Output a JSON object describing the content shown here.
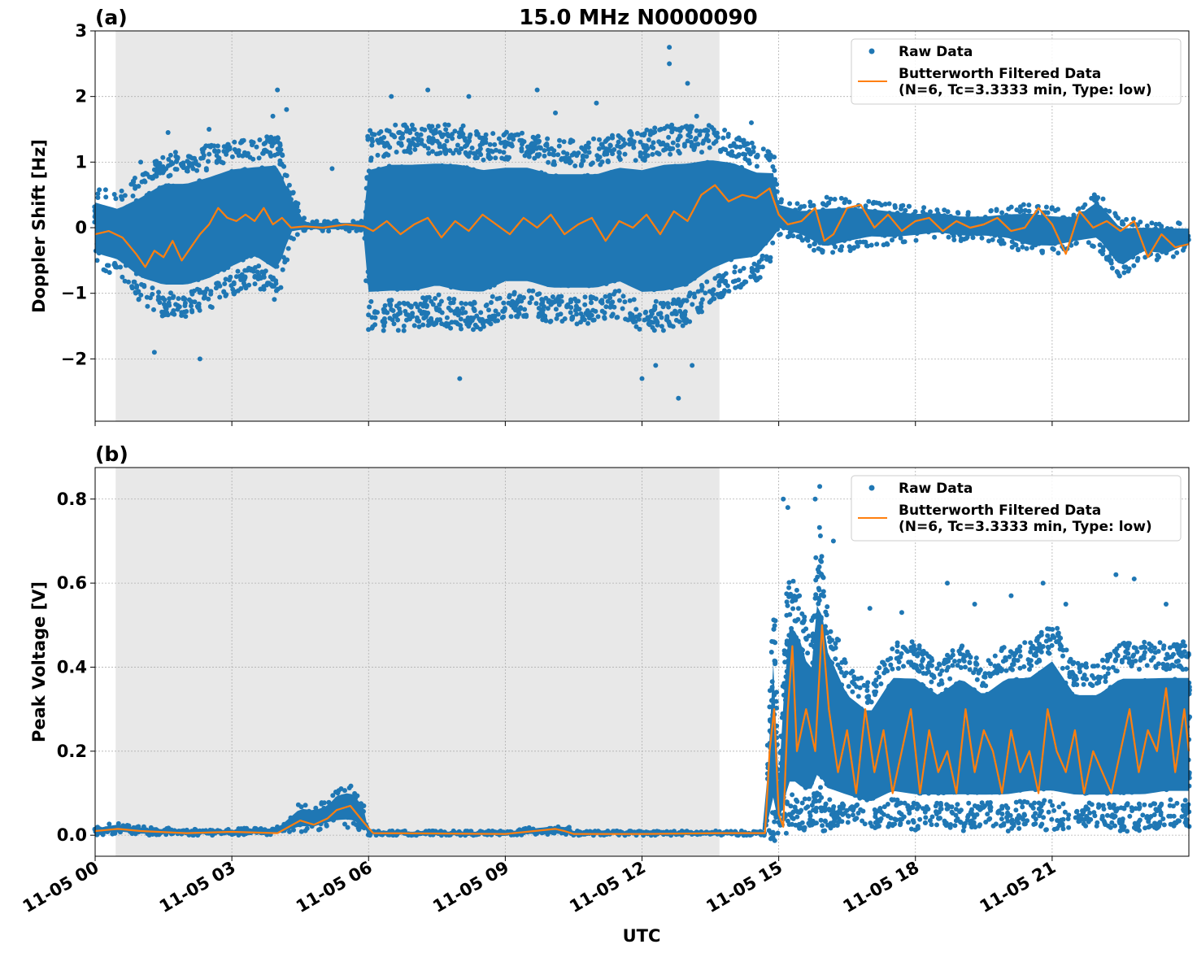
{
  "figure_title": "15.0 MHz N0000090",
  "xlabel": "UTC",
  "colors": {
    "raw": "#1f77b4",
    "filtered": "#ff7f0e",
    "shade": "#e8e8e8",
    "grid": "#b0b0b0"
  },
  "chart_data": [
    {
      "type": "scatter",
      "panel_label": "(a)",
      "ylabel": "Doppler Shift [Hz]",
      "xlim": [
        0,
        24
      ],
      "ylim": [
        -2.95,
        3.0
      ],
      "y_ticks": [
        -2,
        -1,
        0,
        1,
        2,
        3
      ],
      "y_tick_labels": [
        "−2",
        "−1",
        "0",
        "1",
        "2",
        "3"
      ],
      "x_ticks": [
        0,
        3,
        6,
        9,
        12,
        15,
        18,
        21
      ],
      "shaded_region": [
        0.45,
        13.7
      ],
      "grid": true,
      "legend": {
        "position": "top-right",
        "entries": [
          {
            "label": "Raw Data",
            "kind": "marker"
          },
          {
            "label": "Butterworth Filtered Data",
            "label2": "(N=6, Tc=3.3333 min, Type: low)",
            "kind": "line"
          }
        ]
      },
      "series": [
        {
          "name": "Raw Data",
          "kind": "scatter_envelope",
          "x": [
            0.0,
            0.5,
            1.0,
            1.5,
            2.0,
            2.5,
            3.0,
            3.5,
            4.0,
            4.3,
            4.6,
            5.0,
            5.5,
            5.9,
            6.0,
            6.5,
            7.0,
            7.5,
            8.0,
            8.5,
            9.0,
            9.5,
            10.0,
            10.5,
            11.0,
            11.5,
            12.0,
            12.5,
            13.0,
            13.5,
            14.0,
            14.5,
            14.9,
            15.0,
            15.5,
            16.0,
            16.5,
            17.0,
            17.5,
            18.0,
            18.5,
            19.0,
            19.5,
            20.0,
            20.5,
            21.0,
            21.5,
            22.0,
            22.5,
            23.0,
            23.5,
            24.0
          ],
          "upper": [
            0.6,
            0.5,
            0.8,
            1.1,
            1.1,
            1.2,
            1.3,
            1.3,
            1.4,
            0.6,
            0.1,
            0.1,
            0.1,
            0.1,
            1.4,
            1.5,
            1.5,
            1.5,
            1.5,
            1.4,
            1.4,
            1.4,
            1.3,
            1.3,
            1.3,
            1.4,
            1.4,
            1.5,
            1.5,
            1.5,
            1.4,
            1.2,
            1.1,
            0.45,
            0.35,
            0.45,
            0.45,
            0.4,
            0.35,
            0.3,
            0.3,
            0.25,
            0.25,
            0.3,
            0.35,
            0.3,
            0.25,
            0.55,
            0.15,
            0.1,
            0.1,
            0.05
          ],
          "lower": [
            -0.6,
            -0.7,
            -1.1,
            -1.3,
            -1.3,
            -1.2,
            -1.0,
            -0.8,
            -1.1,
            -0.2,
            -0.05,
            -0.05,
            -0.05,
            -0.05,
            -1.5,
            -1.5,
            -1.5,
            -1.4,
            -1.5,
            -1.5,
            -1.3,
            -1.3,
            -1.4,
            -1.4,
            -1.4,
            -1.3,
            -1.5,
            -1.5,
            -1.4,
            -1.1,
            -0.9,
            -0.8,
            -0.4,
            -0.1,
            -0.2,
            -0.45,
            -0.35,
            -0.25,
            -0.25,
            -0.2,
            -0.15,
            -0.2,
            -0.2,
            -0.25,
            -0.4,
            -0.4,
            -0.3,
            -0.3,
            -0.75,
            -0.45,
            -0.5,
            -0.3
          ],
          "outliers_x": [
            1.0,
            1.6,
            2.5,
            3.9,
            4.0,
            4.2,
            5.2,
            6.5,
            7.3,
            8.2,
            9.7,
            10.1,
            11.0,
            12.6,
            12.6,
            13.0,
            13.2,
            14.4,
            2.3,
            1.3,
            8.0,
            12.0,
            12.3,
            12.8,
            13.1
          ],
          "outliers_y": [
            1.0,
            1.45,
            1.5,
            1.7,
            2.1,
            1.8,
            0.9,
            2.0,
            2.1,
            2.0,
            2.1,
            1.75,
            1.9,
            2.75,
            2.5,
            2.2,
            1.7,
            1.6,
            -2.0,
            -1.9,
            -2.3,
            -2.3,
            -2.1,
            -2.6,
            -2.1
          ]
        },
        {
          "name": "Butterworth Filtered Data",
          "kind": "line",
          "x": [
            0.0,
            0.3,
            0.6,
            0.9,
            1.1,
            1.3,
            1.5,
            1.7,
            1.9,
            2.1,
            2.3,
            2.5,
            2.7,
            2.9,
            3.1,
            3.3,
            3.5,
            3.7,
            3.9,
            4.1,
            4.3,
            4.6,
            5.0,
            5.5,
            5.9,
            6.1,
            6.4,
            6.7,
            7.0,
            7.3,
            7.6,
            7.9,
            8.2,
            8.5,
            8.8,
            9.1,
            9.4,
            9.7,
            10.0,
            10.3,
            10.6,
            10.9,
            11.2,
            11.5,
            11.8,
            12.1,
            12.4,
            12.7,
            13.0,
            13.3,
            13.6,
            13.9,
            14.2,
            14.5,
            14.8,
            15.0,
            15.2,
            15.5,
            15.8,
            16.0,
            16.2,
            16.5,
            16.8,
            17.1,
            17.4,
            17.7,
            18.0,
            18.3,
            18.6,
            18.9,
            19.2,
            19.5,
            19.8,
            20.1,
            20.4,
            20.7,
            21.0,
            21.3,
            21.6,
            21.9,
            22.2,
            22.5,
            22.8,
            23.1,
            23.4,
            23.7,
            24.0
          ],
          "y": [
            -0.1,
            -0.05,
            -0.15,
            -0.4,
            -0.6,
            -0.35,
            -0.45,
            -0.2,
            -0.5,
            -0.3,
            -0.1,
            0.05,
            0.3,
            0.15,
            0.1,
            0.2,
            0.1,
            0.3,
            0.05,
            0.15,
            0.0,
            0.02,
            0.0,
            0.05,
            0.02,
            -0.05,
            0.1,
            -0.1,
            0.05,
            0.15,
            -0.15,
            0.1,
            -0.05,
            0.2,
            0.05,
            -0.1,
            0.15,
            0.0,
            0.2,
            -0.1,
            0.05,
            0.15,
            -0.2,
            0.1,
            0.0,
            0.2,
            -0.1,
            0.25,
            0.1,
            0.5,
            0.65,
            0.4,
            0.5,
            0.45,
            0.6,
            0.2,
            0.05,
            0.1,
            0.3,
            -0.2,
            -0.1,
            0.3,
            0.35,
            0.0,
            0.2,
            -0.05,
            0.1,
            0.15,
            -0.05,
            0.1,
            0.0,
            0.05,
            0.15,
            -0.05,
            0.0,
            0.3,
            0.05,
            -0.4,
            0.25,
            0.0,
            0.1,
            -0.05,
            0.1,
            -0.45,
            -0.1,
            -0.3,
            -0.25
          ]
        }
      ]
    },
    {
      "type": "scatter",
      "panel_label": "(b)",
      "ylabel": "Peak Voltage [V]",
      "xlim": [
        0,
        24
      ],
      "ylim": [
        -0.05,
        0.875
      ],
      "y_ticks": [
        0.0,
        0.2,
        0.4,
        0.6,
        0.8
      ],
      "y_tick_labels": [
        "0.0",
        "0.2",
        "0.4",
        "0.6",
        "0.8"
      ],
      "x_ticks": [
        0,
        3,
        6,
        9,
        12,
        15,
        18,
        21
      ],
      "x_tick_labels": [
        "11-05 00",
        "11-05 03",
        "11-05 06",
        "11-05 09",
        "11-05 12",
        "11-05 15",
        "11-05 18",
        "11-05 21"
      ],
      "shaded_region": [
        0.45,
        13.7
      ],
      "grid": true,
      "legend": {
        "position": "top-right",
        "entries": [
          {
            "label": "Raw Data",
            "kind": "marker"
          },
          {
            "label": "Butterworth Filtered Data",
            "label2": "(N=6, Tc=3.3333 min, Type: low)",
            "kind": "line"
          }
        ]
      },
      "series": [
        {
          "name": "Raw Data",
          "kind": "scatter_envelope",
          "x": [
            0.0,
            0.5,
            1.0,
            2.0,
            3.0,
            4.0,
            4.5,
            4.8,
            5.1,
            5.3,
            5.6,
            5.9,
            6.0,
            9.0,
            10.0,
            10.3,
            10.5,
            12.0,
            13.7,
            14.7,
            14.8,
            14.9,
            15.0,
            15.2,
            15.3,
            15.5,
            15.7,
            15.9,
            16.0,
            16.5,
            17.0,
            17.5,
            18.0,
            18.5,
            19.0,
            19.5,
            20.0,
            20.5,
            21.0,
            21.5,
            22.0,
            22.5,
            23.0,
            23.5,
            24.0
          ],
          "upper": [
            0.02,
            0.03,
            0.02,
            0.015,
            0.015,
            0.02,
            0.075,
            0.07,
            0.08,
            0.11,
            0.12,
            0.08,
            0.01,
            0.01,
            0.025,
            0.025,
            0.01,
            0.01,
            0.01,
            0.01,
            0.3,
            0.55,
            0.15,
            0.6,
            0.6,
            0.55,
            0.45,
            0.75,
            0.55,
            0.4,
            0.35,
            0.45,
            0.45,
            0.4,
            0.45,
            0.4,
            0.45,
            0.45,
            0.5,
            0.4,
            0.4,
            0.45,
            0.45,
            0.45,
            0.45
          ],
          "lower": [
            0.0,
            0.005,
            0.0,
            0.0,
            0.0,
            0.0,
            0.01,
            0.01,
            0.02,
            0.02,
            0.02,
            0.01,
            0.0,
            0.0,
            0.0,
            0.0,
            0.0,
            0.0,
            0.0,
            0.0,
            0.0,
            0.0,
            0.0,
            0.02,
            0.03,
            0.02,
            0.03,
            0.03,
            0.02,
            0.03,
            0.02,
            0.03,
            0.02,
            0.03,
            0.02,
            0.03,
            0.02,
            0.03,
            0.02,
            0.03,
            0.03,
            0.02,
            0.02,
            0.03,
            0.03
          ],
          "outliers_x": [
            15.1,
            15.8,
            15.9,
            16.2,
            17.7,
            18.7,
            19.3,
            20.1,
            20.8,
            21.3,
            22.4,
            22.8,
            23.5,
            15.2,
            17.0
          ],
          "outliers_y": [
            0.8,
            0.8,
            0.83,
            0.7,
            0.53,
            0.6,
            0.55,
            0.57,
            0.6,
            0.55,
            0.62,
            0.61,
            0.55,
            0.78,
            0.54
          ]
        },
        {
          "name": "Butterworth Filtered Data",
          "kind": "line",
          "x": [
            0.0,
            0.5,
            1.0,
            2.0,
            3.0,
            4.0,
            4.5,
            4.8,
            5.1,
            5.3,
            5.6,
            5.9,
            6.1,
            9.0,
            10.1,
            10.3,
            10.5,
            12.0,
            13.7,
            14.7,
            14.8,
            14.9,
            15.0,
            15.1,
            15.2,
            15.3,
            15.4,
            15.6,
            15.8,
            15.95,
            16.1,
            16.3,
            16.5,
            16.7,
            16.9,
            17.1,
            17.3,
            17.5,
            17.7,
            17.9,
            18.1,
            18.3,
            18.5,
            18.7,
            18.9,
            19.1,
            19.3,
            19.5,
            19.7,
            19.9,
            20.1,
            20.3,
            20.5,
            20.7,
            20.9,
            21.1,
            21.3,
            21.5,
            21.7,
            21.9,
            22.1,
            22.3,
            22.5,
            22.7,
            22.9,
            23.1,
            23.3,
            23.5,
            23.7,
            23.9,
            24.0
          ],
          "y": [
            0.01,
            0.015,
            0.01,
            0.005,
            0.008,
            0.005,
            0.035,
            0.025,
            0.04,
            0.06,
            0.07,
            0.03,
            0.005,
            0.003,
            0.015,
            0.01,
            0.003,
            0.003,
            0.005,
            0.005,
            0.2,
            0.3,
            0.05,
            0.02,
            0.3,
            0.45,
            0.2,
            0.3,
            0.2,
            0.5,
            0.3,
            0.15,
            0.25,
            0.1,
            0.3,
            0.15,
            0.25,
            0.1,
            0.2,
            0.3,
            0.1,
            0.25,
            0.15,
            0.2,
            0.1,
            0.3,
            0.15,
            0.25,
            0.2,
            0.1,
            0.25,
            0.15,
            0.2,
            0.1,
            0.3,
            0.2,
            0.15,
            0.25,
            0.1,
            0.2,
            0.15,
            0.1,
            0.2,
            0.3,
            0.15,
            0.25,
            0.2,
            0.35,
            0.15,
            0.3,
            0.2
          ]
        }
      ]
    }
  ]
}
